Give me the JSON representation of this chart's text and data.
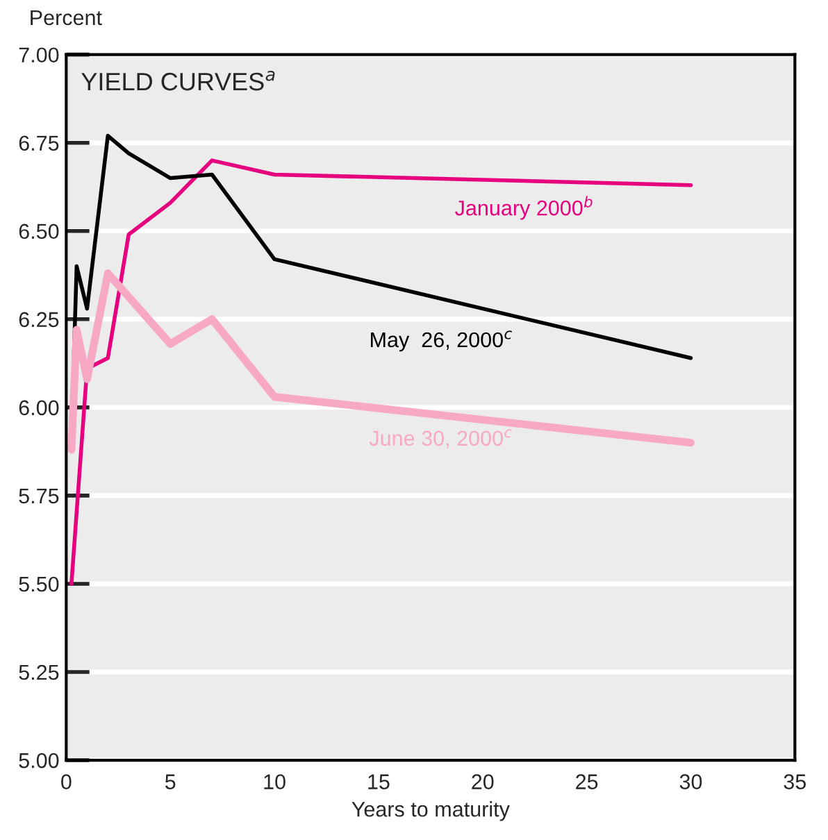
{
  "chart_data": {
    "type": "line",
    "title": "YIELD CURVES$^{a}$",
    "ylabel": "Percent",
    "xlabel": "Years to maturity",
    "xlim": [
      0,
      35
    ],
    "xticks": [
      0,
      5,
      10,
      15,
      20,
      25,
      30,
      35
    ],
    "ylim": [
      5.0,
      7.0
    ],
    "yticks": [
      {
        "value": 5.0,
        "label": "5.00"
      },
      {
        "value": 5.25,
        "label": "5.25"
      },
      {
        "value": 5.5,
        "label": "5.50"
      },
      {
        "value": 5.75,
        "label": "5.75"
      },
      {
        "value": 6.0,
        "label": "6.00"
      },
      {
        "value": 6.25,
        "label": "6.25"
      },
      {
        "value": 6.5,
        "label": "6.50"
      },
      {
        "value": 6.75,
        "label": "6.75"
      },
      {
        "value": 7.0,
        "label": "7.00"
      }
    ],
    "grid": "y",
    "legend": false,
    "marker": "none",
    "line_style": "solid",
    "series": [
      {
        "name": "January 2000$^{b}$",
        "color": "#e6007e",
        "x": [
          0.25,
          1,
          2,
          3,
          5,
          7,
          10,
          30
        ],
        "values": [
          5.5,
          6.11,
          6.14,
          6.49,
          6.58,
          6.7,
          6.66,
          6.63
        ]
      },
      {
        "name": "May  26, 2000$^{c}$",
        "color": "#000000",
        "x": [
          0.25,
          0.5,
          1,
          2,
          3,
          5,
          7,
          10,
          30
        ],
        "values": [
          5.92,
          6.4,
          6.28,
          6.77,
          6.72,
          6.65,
          6.66,
          6.42,
          6.14
        ]
      },
      {
        "name": "June 30, 2000$^{c}$",
        "color": "#f7a8c4",
        "x": [
          0.25,
          0.5,
          1,
          2,
          5,
          7,
          10,
          30
        ],
        "values": [
          5.88,
          6.22,
          6.08,
          6.38,
          6.18,
          6.25,
          6.03,
          5.9
        ]
      }
    ]
  }
}
